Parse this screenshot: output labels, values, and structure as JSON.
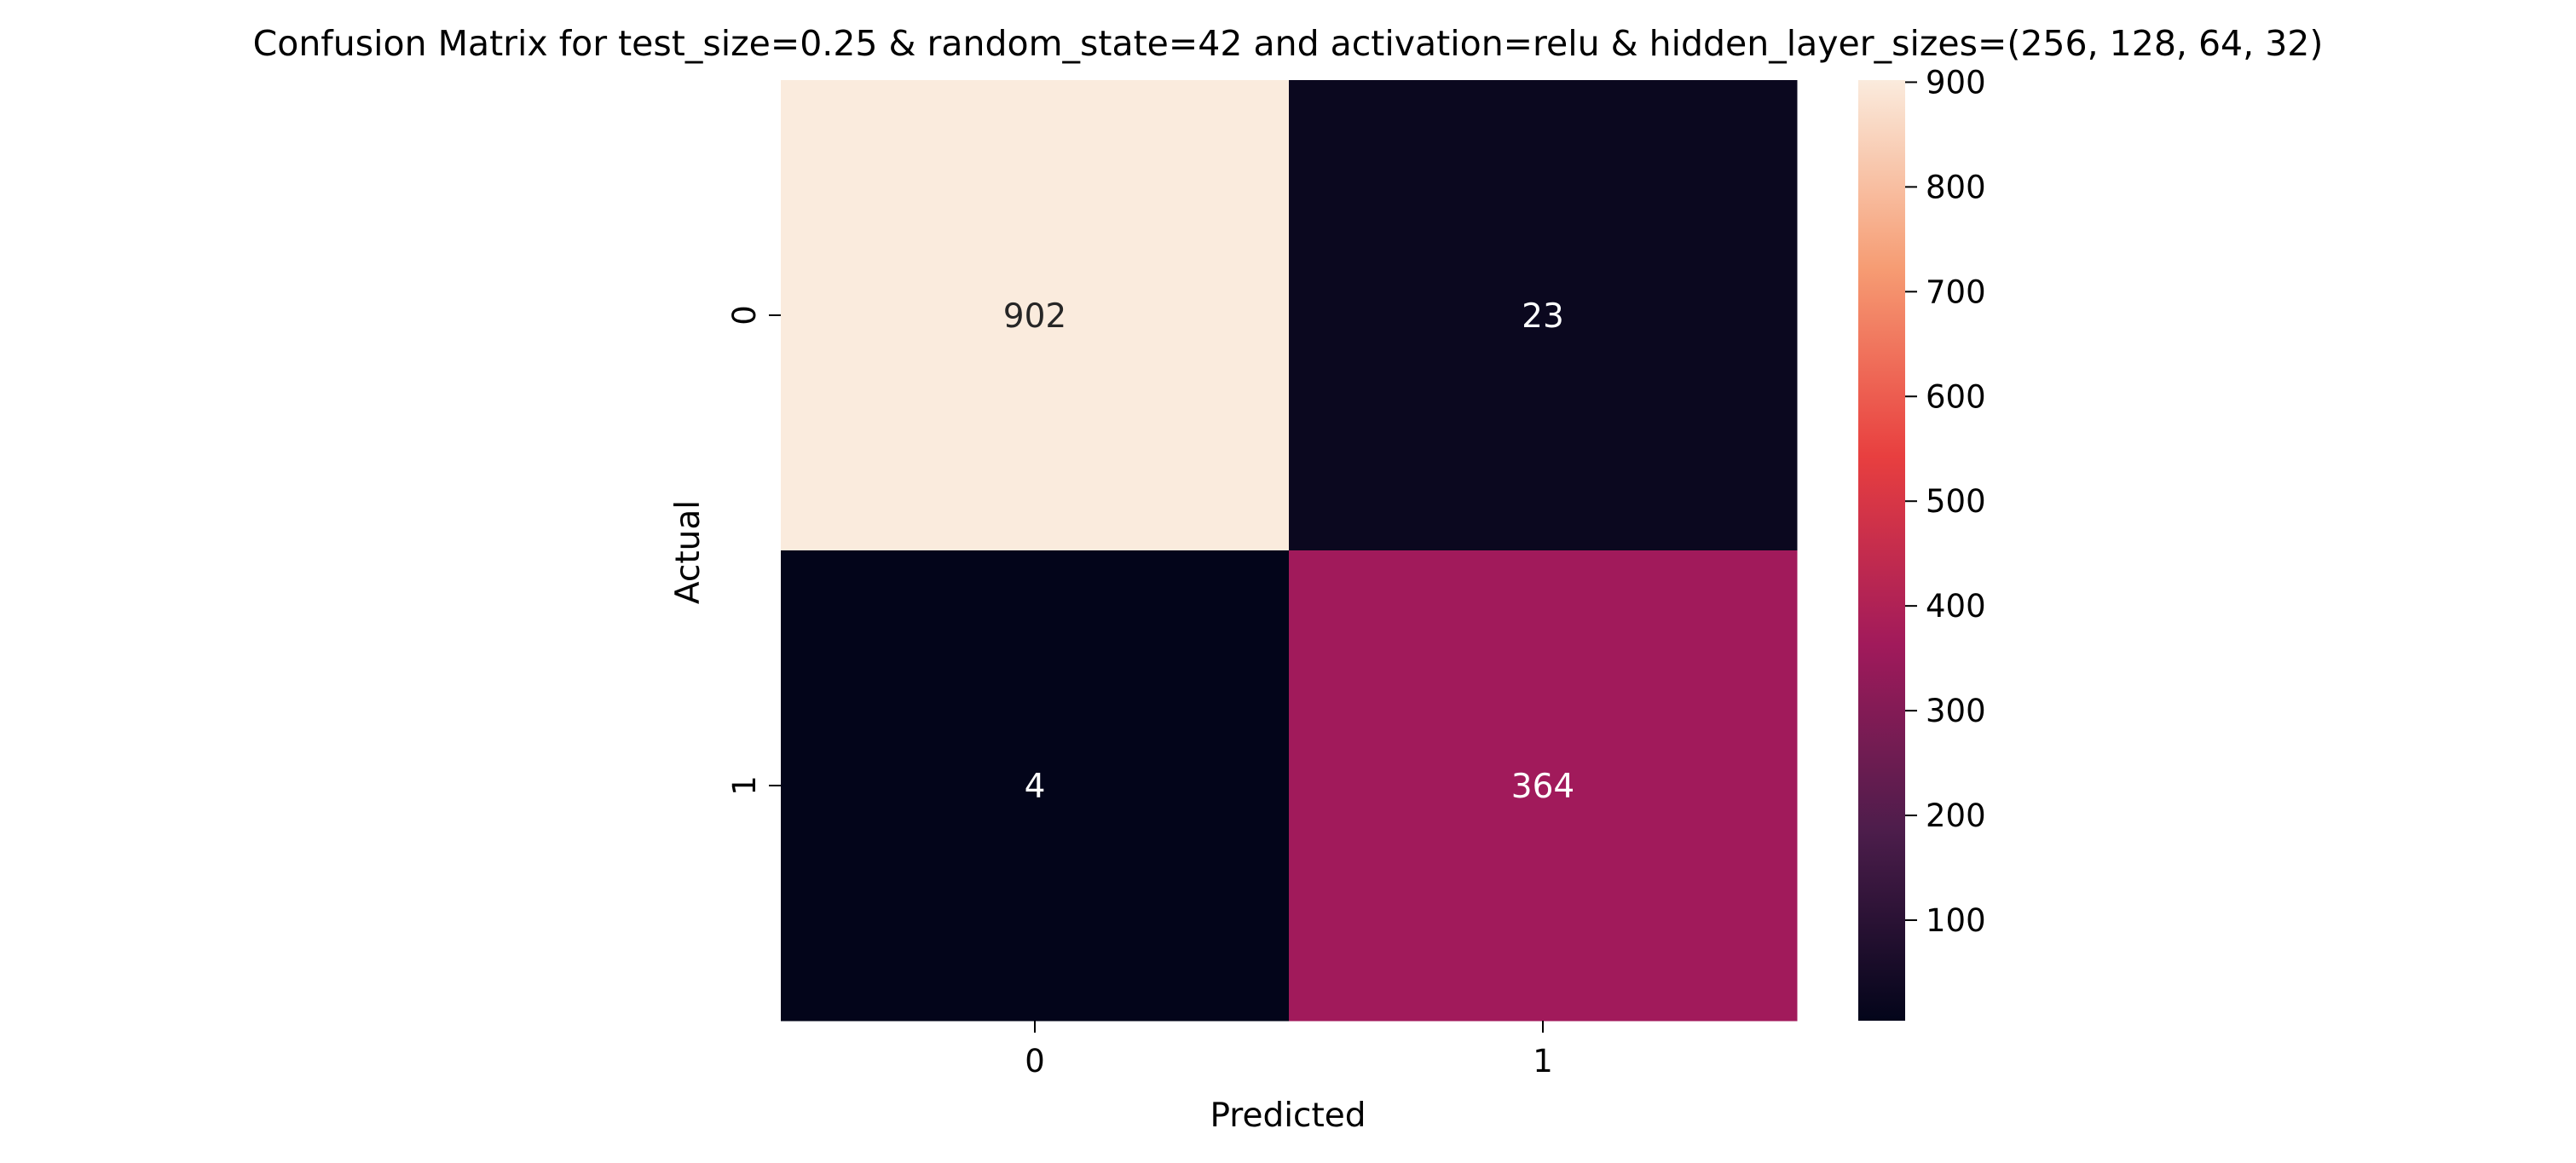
{
  "chart_data": {
    "type": "heatmap",
    "title": "Confusion Matrix for test_size=0.25 & random_state=42 and activation=relu & hidden_layer_sizes=(256, 128, 64, 32)",
    "xlabel": "Predicted",
    "ylabel": "Actual",
    "x_categories": [
      "0",
      "1"
    ],
    "y_categories": [
      "0",
      "1"
    ],
    "matrix": [
      [
        902,
        23
      ],
      [
        4,
        364
      ]
    ],
    "annotations": [
      [
        "902",
        "23"
      ],
      [
        "4",
        "364"
      ]
    ],
    "colorbar": {
      "min": 4,
      "max": 902,
      "ticks": [
        "100",
        "200",
        "300",
        "400",
        "500",
        "600",
        "700",
        "800",
        "900"
      ],
      "colormap": "rocket"
    },
    "colors": {
      "cmap_stops": [
        "#03051a",
        "#4c1d4b",
        "#a11a5b",
        "#e83f3f",
        "#f69c73",
        "#faebdd"
      ],
      "annotation_light_text": "#ffffff",
      "annotation_dark_text": "#262626"
    }
  }
}
